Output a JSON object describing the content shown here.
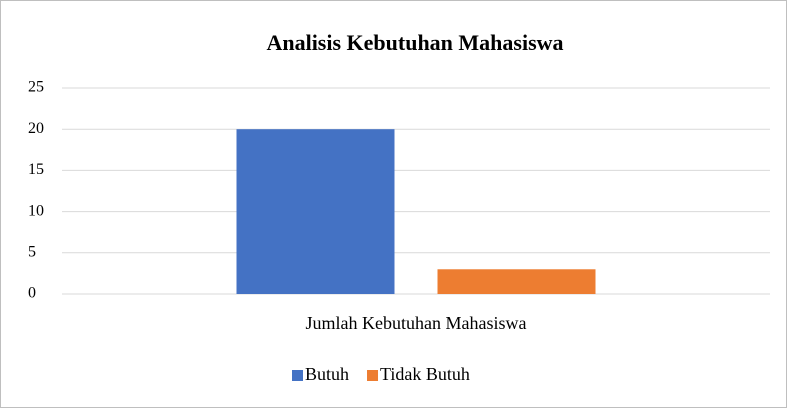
{
  "chart_data": {
    "type": "bar",
    "title": "Analisis Kebutuhan Mahasiswa",
    "categories": [
      "Jumlah Kebutuhan Mahasiswa"
    ],
    "series": [
      {
        "name": "Butuh",
        "color": "#4472c4",
        "values": [
          20
        ]
      },
      {
        "name": "Tidak Butuh",
        "color": "#ed7d31",
        "values": [
          3
        ]
      }
    ],
    "ylim": [
      0,
      25
    ],
    "yticks": [
      0,
      5,
      10,
      15,
      20,
      25
    ],
    "grid": true,
    "legend": "bottom"
  }
}
